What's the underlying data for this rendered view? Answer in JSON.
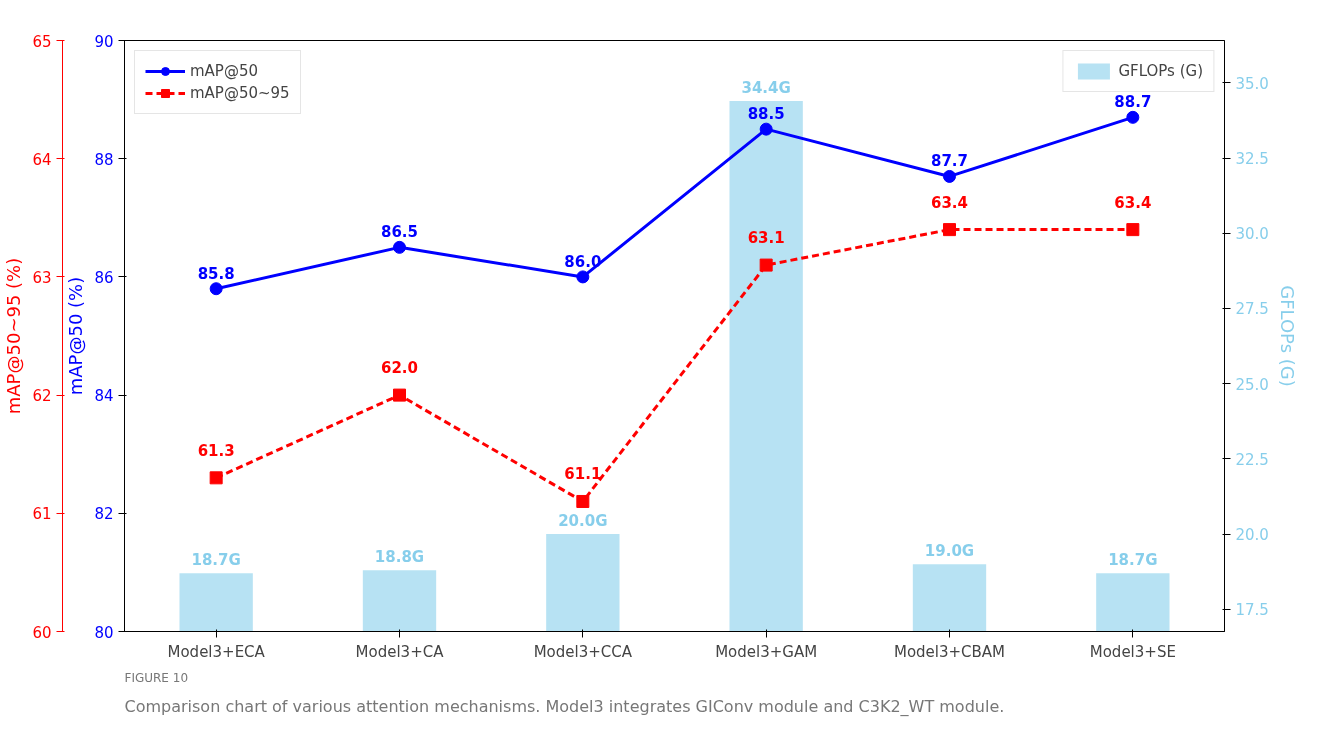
{
  "chart_data": {
    "type": "line",
    "categories": [
      "Model3+ECA",
      "Model3+CA",
      "Model3+CCA",
      "Model3+GAM",
      "Model3+CBAM",
      "Model3+SE"
    ],
    "series": [
      {
        "name": "mAP@50",
        "axis": "y",
        "color": "#0000ff",
        "marker": "circle",
        "line_style": "solid",
        "values": [
          85.8,
          86.5,
          86.0,
          88.5,
          87.7,
          88.7
        ],
        "value_labels": [
          "85.8",
          "86.5",
          "86.0",
          "88.5",
          "87.7",
          "88.7"
        ]
      },
      {
        "name": "mAP@50~95",
        "axis": "y2",
        "color": "#ff0000",
        "marker": "square",
        "line_style": "dashed",
        "values": [
          61.3,
          62.0,
          61.1,
          63.1,
          63.4,
          63.4
        ],
        "value_labels": [
          "61.3",
          "62.0",
          "61.1",
          "63.1",
          "63.4",
          "63.4"
        ]
      },
      {
        "name": "GFLOPs (G)",
        "type": "bar",
        "axis": "y3",
        "color": "#87ceeb",
        "values": [
          18.7,
          18.8,
          20.0,
          34.4,
          19.0,
          18.7
        ],
        "value_labels": [
          "18.7G",
          "18.8G",
          "20.0G",
          "34.4G",
          "19.0G",
          "18.7G"
        ]
      }
    ],
    "ylabel": "mAP@50 (%)",
    "ylim": [
      80,
      90
    ],
    "yticks": [
      80,
      82,
      84,
      86,
      88,
      90
    ],
    "y2label": "mAP@50~95 (%)",
    "y2lim": [
      60,
      65
    ],
    "y2ticks": [
      60,
      61,
      62,
      63,
      64,
      65
    ],
    "y3label": "GFLOPs (G)",
    "y3lim": [
      16.76,
      36.41
    ],
    "y3ticks": [
      {
        "value": 17.5,
        "label": "17.5"
      },
      {
        "value": 20,
        "label": "20.0"
      },
      {
        "value": 22.5,
        "label": "22.5"
      },
      {
        "value": 25,
        "label": "25.0"
      },
      {
        "value": 27.5,
        "label": "27.5"
      },
      {
        "value": 30,
        "label": "30.0"
      },
      {
        "value": 32.5,
        "label": "32.5"
      },
      {
        "value": 35,
        "label": "35.0"
      }
    ],
    "legend": "top left",
    "grid": false,
    "annotations": [
      "FIGURE 10",
      "Comparison chart of various attention mechanisms. Model3 integrates GIConv module and C3K2_WT module."
    ]
  }
}
